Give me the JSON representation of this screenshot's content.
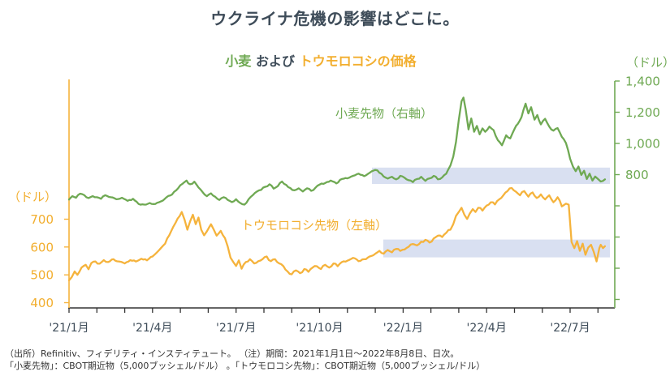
{
  "page": {
    "title": "ウクライナ危機の影響はどこに。"
  },
  "subtitle": {
    "wheat_part": "小麦",
    "separator": " および ",
    "corn_part": "トウモロコシの価格"
  },
  "colors": {
    "wheat_green": "#6fa953",
    "corn_yellow": "#f5b33c",
    "corn_yellow_text": "#f2ae2e",
    "highlight_band": "#d9e0f1",
    "title_text": "#3e4c59",
    "x_axis_dark": "#333333",
    "footer_text": "#333333"
  },
  "chart_data": {
    "type": "line",
    "title": "小麦 および トウモロコシの価格",
    "period_note": "2021年1月1日～2022年8月8日、日次",
    "x_axis": {
      "unit": "month",
      "range_months": [
        0,
        19.6
      ],
      "labels": [
        {
          "m": 0,
          "label": "'21/1月"
        },
        {
          "m": 3,
          "label": "'21/4月"
        },
        {
          "m": 6,
          "label": "'21/7月"
        },
        {
          "m": 9,
          "label": "'21/10月"
        },
        {
          "m": 12,
          "label": "'22/1月"
        },
        {
          "m": 15,
          "label": "'22/4月"
        },
        {
          "m": 18,
          "label": "'22/7月"
        }
      ],
      "minor_tick_months": [
        0,
        1,
        2,
        3,
        4,
        5,
        6,
        7,
        8,
        9,
        10,
        11,
        12,
        13,
        14,
        15,
        16,
        17,
        18,
        19
      ]
    },
    "left_axis": {
      "unit": "（ドル）",
      "series": "トウモロコシ先物",
      "ticks": [
        {
          "v": 700,
          "label": "700"
        },
        {
          "v": 600,
          "label": "600"
        },
        {
          "v": 500,
          "label": "500"
        },
        {
          "v": 400,
          "label": "400"
        }
      ]
    },
    "right_axis": {
      "unit": "（ドル）",
      "series": "小麦先物",
      "ticks": [
        {
          "v": 1400,
          "label": "1,400"
        },
        {
          "v": 1200,
          "label": "1,200"
        },
        {
          "v": 1000,
          "label": "1,000"
        },
        {
          "v": 800,
          "label": "800"
        }
      ],
      "unlabeled_ticks": [
        600,
        400,
        200,
        0
      ]
    },
    "annotations": {
      "bands": [
        {
          "series": "wheat",
          "axis": "right",
          "from_month": 10.88,
          "to_month": 19.43,
          "value_from": 740,
          "value_to": 845
        },
        {
          "series": "corn",
          "axis": "left",
          "from_month": 11.29,
          "to_month": 19.43,
          "value_from": 563,
          "value_to": 627
        }
      ]
    },
    "series": [
      {
        "name": "小麦先物（右軸）",
        "axis": "right",
        "color": "#6fa953",
        "points": [
          [
            0,
            640
          ],
          [
            0.12,
            662
          ],
          [
            0.25,
            652
          ],
          [
            0.4,
            678
          ],
          [
            0.55,
            668
          ],
          [
            0.7,
            650
          ],
          [
            0.85,
            662
          ],
          [
            1.0,
            655
          ],
          [
            1.15,
            645
          ],
          [
            1.3,
            668
          ],
          [
            1.5,
            655
          ],
          [
            1.7,
            642
          ],
          [
            1.9,
            652
          ],
          [
            2.1,
            632
          ],
          [
            2.3,
            645
          ],
          [
            2.5,
            612
          ],
          [
            2.7,
            608
          ],
          [
            2.9,
            618
          ],
          [
            3.1,
            612
          ],
          [
            3.3,
            628
          ],
          [
            3.5,
            655
          ],
          [
            3.7,
            672
          ],
          [
            3.85,
            700
          ],
          [
            4.0,
            732
          ],
          [
            4.12,
            748
          ],
          [
            4.22,
            762
          ],
          [
            4.35,
            738
          ],
          [
            4.5,
            755
          ],
          [
            4.65,
            718
          ],
          [
            4.8,
            688
          ],
          [
            4.95,
            662
          ],
          [
            5.1,
            680
          ],
          [
            5.25,
            658
          ],
          [
            5.4,
            638
          ],
          [
            5.55,
            655
          ],
          [
            5.7,
            638
          ],
          [
            5.85,
            624
          ],
          [
            6.0,
            642
          ],
          [
            6.15,
            618
          ],
          [
            6.3,
            608
          ],
          [
            6.45,
            642
          ],
          [
            6.6,
            668
          ],
          [
            6.75,
            692
          ],
          [
            6.9,
            702
          ],
          [
            7.05,
            722
          ],
          [
            7.2,
            738
          ],
          [
            7.35,
            710
          ],
          [
            7.5,
            726
          ],
          [
            7.65,
            756
          ],
          [
            7.8,
            734
          ],
          [
            7.95,
            714
          ],
          [
            8.1,
            700
          ],
          [
            8.25,
            712
          ],
          [
            8.4,
            692
          ],
          [
            8.55,
            712
          ],
          [
            8.7,
            696
          ],
          [
            8.85,
            716
          ],
          [
            9.0,
            736
          ],
          [
            9.2,
            746
          ],
          [
            9.4,
            762
          ],
          [
            9.6,
            744
          ],
          [
            9.8,
            772
          ],
          [
            10.0,
            776
          ],
          [
            10.2,
            792
          ],
          [
            10.4,
            806
          ],
          [
            10.6,
            790
          ],
          [
            10.8,
            812
          ],
          [
            11.0,
            830
          ],
          [
            11.15,
            812
          ],
          [
            11.3,
            788
          ],
          [
            11.45,
            775
          ],
          [
            11.6,
            786
          ],
          [
            11.75,
            770
          ],
          [
            11.9,
            792
          ],
          [
            12.05,
            780
          ],
          [
            12.2,
            764
          ],
          [
            12.35,
            752
          ],
          [
            12.5,
            772
          ],
          [
            12.65,
            786
          ],
          [
            12.8,
            760
          ],
          [
            12.95,
            776
          ],
          [
            13.1,
            792
          ],
          [
            13.25,
            770
          ],
          [
            13.4,
            782
          ],
          [
            13.55,
            806
          ],
          [
            13.7,
            858
          ],
          [
            13.8,
            915
          ],
          [
            13.9,
            1010
          ],
          [
            14.0,
            1150
          ],
          [
            14.1,
            1270
          ],
          [
            14.17,
            1294
          ],
          [
            14.25,
            1215
          ],
          [
            14.35,
            1090
          ],
          [
            14.45,
            1160
          ],
          [
            14.55,
            1075
          ],
          [
            14.65,
            1112
          ],
          [
            14.75,
            1058
          ],
          [
            14.85,
            1096
          ],
          [
            14.95,
            1075
          ],
          [
            15.1,
            1108
          ],
          [
            15.25,
            1085
          ],
          [
            15.4,
            1022
          ],
          [
            15.55,
            988
          ],
          [
            15.7,
            1052
          ],
          [
            15.85,
            1032
          ],
          [
            16.0,
            1092
          ],
          [
            16.12,
            1125
          ],
          [
            16.25,
            1168
          ],
          [
            16.4,
            1255
          ],
          [
            16.5,
            1192
          ],
          [
            16.6,
            1232
          ],
          [
            16.72,
            1152
          ],
          [
            16.82,
            1182
          ],
          [
            16.95,
            1122
          ],
          [
            17.1,
            1158
          ],
          [
            17.25,
            1108
          ],
          [
            17.4,
            1082
          ],
          [
            17.55,
            1098
          ],
          [
            17.7,
            1042
          ],
          [
            17.85,
            1002
          ],
          [
            18.0,
            902
          ],
          [
            18.1,
            852
          ],
          [
            18.2,
            822
          ],
          [
            18.3,
            852
          ],
          [
            18.4,
            798
          ],
          [
            18.5,
            825
          ],
          [
            18.6,
            772
          ],
          [
            18.7,
            806
          ],
          [
            18.8,
            762
          ],
          [
            18.9,
            788
          ],
          [
            19.0,
            772
          ],
          [
            19.1,
            756
          ],
          [
            19.25,
            770
          ]
        ]
      },
      {
        "name": "トウモロコシ先物（左軸）",
        "axis": "left",
        "color": "#f5b33c",
        "points": [
          [
            0,
            480
          ],
          [
            0.1,
            492
          ],
          [
            0.2,
            512
          ],
          [
            0.3,
            500
          ],
          [
            0.45,
            526
          ],
          [
            0.6,
            536
          ],
          [
            0.7,
            520
          ],
          [
            0.8,
            542
          ],
          [
            0.95,
            548
          ],
          [
            1.1,
            540
          ],
          [
            1.25,
            553
          ],
          [
            1.4,
            546
          ],
          [
            1.6,
            556
          ],
          [
            1.8,
            548
          ],
          [
            2.0,
            541
          ],
          [
            2.2,
            553
          ],
          [
            2.4,
            548
          ],
          [
            2.6,
            558
          ],
          [
            2.8,
            552
          ],
          [
            3.0,
            566
          ],
          [
            3.15,
            580
          ],
          [
            3.3,
            596
          ],
          [
            3.45,
            612
          ],
          [
            3.6,
            642
          ],
          [
            3.75,
            674
          ],
          [
            3.9,
            702
          ],
          [
            4.05,
            726
          ],
          [
            4.15,
            698
          ],
          [
            4.25,
            662
          ],
          [
            4.35,
            692
          ],
          [
            4.45,
            716
          ],
          [
            4.55,
            682
          ],
          [
            4.65,
            706
          ],
          [
            4.75,
            662
          ],
          [
            4.85,
            642
          ],
          [
            4.95,
            656
          ],
          [
            5.1,
            682
          ],
          [
            5.2,
            662
          ],
          [
            5.3,
            641
          ],
          [
            5.45,
            658
          ],
          [
            5.6,
            632
          ],
          [
            5.7,
            602
          ],
          [
            5.8,
            562
          ],
          [
            5.9,
            546
          ],
          [
            6.0,
            532
          ],
          [
            6.1,
            552
          ],
          [
            6.2,
            522
          ],
          [
            6.35,
            546
          ],
          [
            6.5,
            556
          ],
          [
            6.65,
            541
          ],
          [
            6.8,
            549
          ],
          [
            6.95,
            556
          ],
          [
            7.1,
            566
          ],
          [
            7.25,
            549
          ],
          [
            7.4,
            556
          ],
          [
            7.55,
            541
          ],
          [
            7.7,
            531
          ],
          [
            7.85,
            512
          ],
          [
            8.0,
            502
          ],
          [
            8.15,
            516
          ],
          [
            8.3,
            506
          ],
          [
            8.45,
            521
          ],
          [
            8.6,
            511
          ],
          [
            8.75,
            526
          ],
          [
            8.9,
            531
          ],
          [
            9.05,
            521
          ],
          [
            9.2,
            536
          ],
          [
            9.35,
            526
          ],
          [
            9.5,
            541
          ],
          [
            9.65,
            531
          ],
          [
            9.8,
            546
          ],
          [
            10.0,
            551
          ],
          [
            10.2,
            561
          ],
          [
            10.4,
            549
          ],
          [
            10.6,
            556
          ],
          [
            10.8,
            566
          ],
          [
            11.0,
            576
          ],
          [
            11.15,
            586
          ],
          [
            11.3,
            576
          ],
          [
            11.45,
            589
          ],
          [
            11.6,
            581
          ],
          [
            11.75,
            593
          ],
          [
            11.9,
            586
          ],
          [
            12.05,
            591
          ],
          [
            12.2,
            601
          ],
          [
            12.35,
            611
          ],
          [
            12.5,
            606
          ],
          [
            12.65,
            619
          ],
          [
            12.8,
            626
          ],
          [
            12.95,
            616
          ],
          [
            13.1,
            631
          ],
          [
            13.25,
            641
          ],
          [
            13.4,
            636
          ],
          [
            13.55,
            651
          ],
          [
            13.7,
            662
          ],
          [
            13.8,
            682
          ],
          [
            13.9,
            712
          ],
          [
            14.0,
            726
          ],
          [
            14.1,
            741
          ],
          [
            14.2,
            716
          ],
          [
            14.3,
            701
          ],
          [
            14.4,
            721
          ],
          [
            14.5,
            736
          ],
          [
            14.6,
            726
          ],
          [
            14.7,
            741
          ],
          [
            14.85,
            731
          ],
          [
            15.0,
            749
          ],
          [
            15.15,
            761
          ],
          [
            15.3,
            753
          ],
          [
            15.45,
            771
          ],
          [
            15.6,
            786
          ],
          [
            15.75,
            801
          ],
          [
            15.9,
            812
          ],
          [
            16.05,
            799
          ],
          [
            16.2,
            786
          ],
          [
            16.35,
            801
          ],
          [
            16.5,
            781
          ],
          [
            16.65,
            796
          ],
          [
            16.8,
            776
          ],
          [
            16.95,
            789
          ],
          [
            17.1,
            771
          ],
          [
            17.25,
            786
          ],
          [
            17.4,
            761
          ],
          [
            17.55,
            779
          ],
          [
            17.7,
            746
          ],
          [
            17.85,
            756
          ],
          [
            17.95,
            752
          ],
          [
            18.05,
            618
          ],
          [
            18.15,
            596
          ],
          [
            18.25,
            621
          ],
          [
            18.35,
            586
          ],
          [
            18.45,
            612
          ],
          [
            18.55,
            572
          ],
          [
            18.65,
            598
          ],
          [
            18.75,
            608
          ],
          [
            18.85,
            582
          ],
          [
            18.95,
            548
          ],
          [
            19.05,
            596
          ],
          [
            19.1,
            608
          ],
          [
            19.18,
            596
          ],
          [
            19.25,
            603
          ]
        ]
      }
    ]
  },
  "footer": {
    "line1": "（出所）Refinitiv、フィデリティ・インスティテュート。 （注）期間：2021年1月1日～2022年8月8日、日次。",
    "line2": "「小麦先物」：CBOT期近物（5,000ブッシェル/ドル） 。「トウモロコシ先物」：CBOT期近物（5,000ブッシェル/ドル）"
  }
}
